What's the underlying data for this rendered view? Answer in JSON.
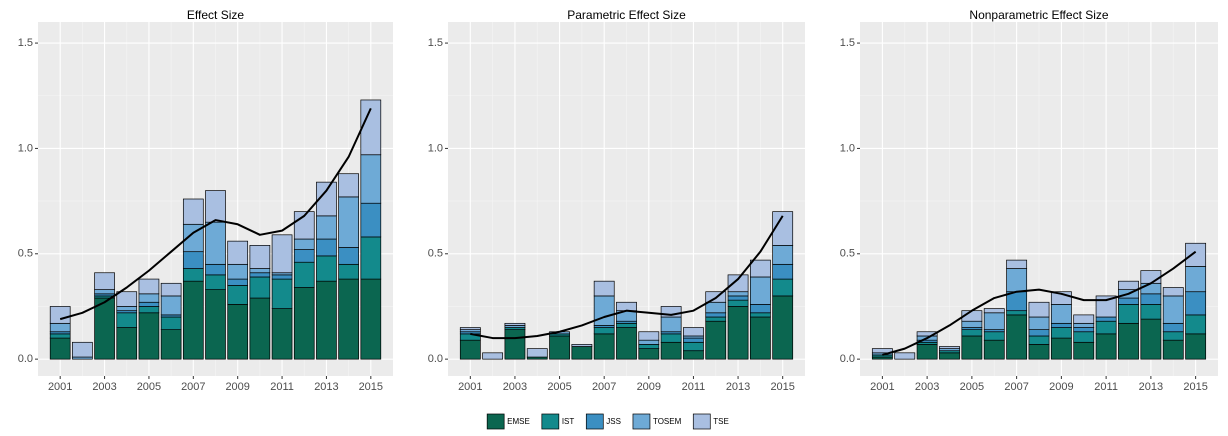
{
  "legend": [
    {
      "name": "EMSE",
      "color": "#0b6650"
    },
    {
      "name": "IST",
      "color": "#138a8c"
    },
    {
      "name": "JSS",
      "color": "#3b8fc2"
    },
    {
      "name": "TOSEM",
      "color": "#6eaad6"
    },
    {
      "name": "TSE",
      "color": "#a9bfe1"
    }
  ],
  "legend_position": "bottom",
  "chart_data": [
    {
      "type": "stacked_bar",
      "title": "Effect Size",
      "x": [
        2001,
        2002,
        2003,
        2004,
        2005,
        2006,
        2007,
        2008,
        2009,
        2010,
        2011,
        2012,
        2013,
        2014,
        2015
      ],
      "xlim": [
        2000,
        2016
      ],
      "xticks": [
        2001,
        2003,
        2005,
        2007,
        2009,
        2011,
        2013,
        2015
      ],
      "ylim": [
        -0.08,
        1.6
      ],
      "yticks": [
        {
          "value": 0,
          "label": "0.0"
        },
        {
          "value": 0.5,
          "label": "0.5"
        },
        {
          "value": 1,
          "label": "1.0"
        },
        {
          "value": 1.5,
          "label": "1.5"
        }
      ],
      "grid": true,
      "series": [
        {
          "values": [
            0.1,
            0,
            0.29,
            0.15,
            0.22,
            0.14,
            0.37,
            0.33,
            0.26,
            0.29,
            0.24,
            0.34,
            0.37,
            0.38,
            0.38
          ]
        },
        {
          "values": [
            0.02,
            0,
            0.01,
            0.07,
            0.03,
            0.06,
            0.06,
            0.07,
            0.09,
            0.1,
            0.14,
            0.12,
            0.12,
            0.07,
            0.2
          ]
        },
        {
          "values": [
            0.01,
            0,
            0.01,
            0.01,
            0.02,
            0.01,
            0.08,
            0.05,
            0.03,
            0.02,
            0.02,
            0.06,
            0.08,
            0.08,
            0.16
          ]
        },
        {
          "values": [
            0.04,
            0.01,
            0.02,
            0.02,
            0.04,
            0.09,
            0.13,
            0.2,
            0.07,
            0.02,
            0.01,
            0.05,
            0.11,
            0.24,
            0.23
          ]
        },
        {
          "values": [
            0.08,
            0.07,
            0.08,
            0.07,
            0.07,
            0.06,
            0.12,
            0.15,
            0.11,
            0.11,
            0.18,
            0.13,
            0.16,
            0.11,
            0.26
          ]
        }
      ],
      "trend_values": [
        0.19,
        0.22,
        0.27,
        0.34,
        0.42,
        0.51,
        0.6,
        0.66,
        0.64,
        0.59,
        0.61,
        0.68,
        0.8,
        0.96,
        1.19
      ]
    },
    {
      "type": "stacked_bar",
      "title": "Parametric Effect Size",
      "x": [
        2001,
        2002,
        2003,
        2004,
        2005,
        2006,
        2007,
        2008,
        2009,
        2010,
        2011,
        2012,
        2013,
        2014,
        2015
      ],
      "xlim": [
        2000,
        2016
      ],
      "xticks": [
        2001,
        2003,
        2005,
        2007,
        2009,
        2011,
        2013,
        2015
      ],
      "ylim": [
        -0.08,
        1.6
      ],
      "yticks": [
        {
          "value": 0,
          "label": "0.0"
        },
        {
          "value": 0.5,
          "label": "0.5"
        },
        {
          "value": 1,
          "label": "1.0"
        },
        {
          "value": 1.5,
          "label": "1.5"
        }
      ],
      "grid": true,
      "series": [
        {
          "values": [
            0.09,
            0,
            0.14,
            0.01,
            0.11,
            0.06,
            0.12,
            0.15,
            0.05,
            0.08,
            0.04,
            0.18,
            0.25,
            0.2,
            0.3
          ]
        },
        {
          "values": [
            0.03,
            0,
            0.01,
            0,
            0.01,
            0,
            0.03,
            0.02,
            0.02,
            0.04,
            0.04,
            0.02,
            0.03,
            0.02,
            0.08
          ]
        },
        {
          "values": [
            0.01,
            0,
            0,
            0,
            0,
            0,
            0.01,
            0.01,
            0,
            0.01,
            0.02,
            0.02,
            0.02,
            0.04,
            0.07
          ]
        },
        {
          "values": [
            0.01,
            0,
            0.01,
            0,
            0.01,
            0,
            0.14,
            0.05,
            0.02,
            0.07,
            0.01,
            0.05,
            0.02,
            0.13,
            0.09
          ]
        },
        {
          "values": [
            0.01,
            0.03,
            0.01,
            0.04,
            0,
            0.01,
            0.07,
            0.04,
            0.04,
            0.05,
            0.04,
            0.05,
            0.08,
            0.08,
            0.16
          ]
        }
      ],
      "trend_values": [
        0.12,
        0.1,
        0.1,
        0.11,
        0.13,
        0.16,
        0.2,
        0.23,
        0.22,
        0.21,
        0.23,
        0.29,
        0.38,
        0.51,
        0.68
      ]
    },
    {
      "type": "stacked_bar",
      "title": "Nonparametric Effect Size",
      "x": [
        2001,
        2002,
        2003,
        2004,
        2005,
        2006,
        2007,
        2008,
        2009,
        2010,
        2011,
        2012,
        2013,
        2014,
        2015
      ],
      "xlim": [
        2000,
        2016
      ],
      "xticks": [
        2001,
        2003,
        2005,
        2007,
        2009,
        2011,
        2013,
        2015
      ],
      "ylim": [
        -0.08,
        1.6
      ],
      "yticks": [
        {
          "value": 0,
          "label": "0.0"
        },
        {
          "value": 0.5,
          "label": "0.5"
        },
        {
          "value": 1,
          "label": "1.0"
        },
        {
          "value": 1.5,
          "label": "1.5"
        }
      ],
      "grid": true,
      "series": [
        {
          "values": [
            0.01,
            0,
            0.07,
            0.03,
            0.11,
            0.09,
            0.21,
            0.07,
            0.1,
            0.08,
            0.12,
            0.17,
            0.19,
            0.09,
            0.12
          ]
        },
        {
          "values": [
            0.01,
            0,
            0.01,
            0.01,
            0.03,
            0.04,
            0.02,
            0.04,
            0.05,
            0.05,
            0.06,
            0.09,
            0.07,
            0.04,
            0.09
          ]
        },
        {
          "values": [
            0,
            0,
            0.01,
            0,
            0.01,
            0.01,
            0.09,
            0.03,
            0.02,
            0.02,
            0.02,
            0.03,
            0.05,
            0.04,
            0.11
          ]
        },
        {
          "values": [
            0.01,
            0,
            0.02,
            0.01,
            0.03,
            0.08,
            0.11,
            0.06,
            0.09,
            0.02,
            0,
            0.04,
            0.05,
            0.13,
            0.12
          ]
        },
        {
          "values": [
            0.02,
            0.03,
            0.02,
            0.01,
            0.05,
            0.02,
            0.04,
            0.07,
            0.06,
            0.04,
            0.1,
            0.04,
            0.06,
            0.04,
            0.11
          ]
        }
      ],
      "trend_values": [
        0.02,
        0.05,
        0.1,
        0.16,
        0.23,
        0.29,
        0.32,
        0.33,
        0.31,
        0.28,
        0.28,
        0.31,
        0.36,
        0.43,
        0.51
      ]
    }
  ]
}
